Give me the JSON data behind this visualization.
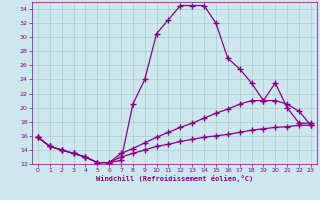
{
  "xlabel": "Windchill (Refroidissement éolien,°C)",
  "bg_color": "#cce8ec",
  "grid_color": "#aacccc",
  "line_color": "#880088",
  "xlim": [
    -0.5,
    23.5
  ],
  "ylim": [
    12,
    35
  ],
  "xticks": [
    0,
    1,
    2,
    3,
    4,
    5,
    6,
    7,
    8,
    9,
    10,
    11,
    12,
    13,
    14,
    15,
    16,
    17,
    18,
    19,
    20,
    21,
    22,
    23
  ],
  "yticks": [
    12,
    14,
    16,
    18,
    20,
    22,
    24,
    26,
    28,
    30,
    32,
    34
  ],
  "curve1_x": [
    0,
    1,
    2,
    3,
    4,
    5,
    6,
    7,
    8,
    9,
    10,
    11,
    12,
    13,
    14,
    15,
    16,
    17,
    18,
    19,
    20,
    21,
    22,
    23
  ],
  "curve1_y": [
    15.8,
    14.5,
    14.0,
    13.5,
    13.0,
    12.2,
    12.2,
    12.5,
    20.5,
    24.0,
    30.5,
    32.5,
    34.5,
    34.5,
    34.5,
    32.0,
    27.0,
    25.5,
    23.5,
    21.0,
    23.5,
    20.0,
    17.8,
    17.8
  ],
  "curve2_x": [
    0,
    1,
    2,
    3,
    4,
    5,
    6,
    7,
    8,
    9,
    10,
    11,
    12,
    13,
    14,
    15,
    16,
    17,
    18,
    19,
    20,
    21,
    22,
    23
  ],
  "curve2_y": [
    15.8,
    14.5,
    14.0,
    13.5,
    13.0,
    12.2,
    12.2,
    13.5,
    14.2,
    15.0,
    15.8,
    16.5,
    17.2,
    17.8,
    18.5,
    19.2,
    19.8,
    20.5,
    21.0,
    21.0,
    21.0,
    20.5,
    19.5,
    17.5
  ],
  "curve3_x": [
    0,
    1,
    2,
    3,
    4,
    5,
    6,
    7,
    8,
    9,
    10,
    11,
    12,
    13,
    14,
    15,
    16,
    17,
    18,
    19,
    20,
    21,
    22,
    23
  ],
  "curve3_y": [
    15.8,
    14.5,
    14.0,
    13.5,
    13.0,
    12.2,
    12.2,
    13.0,
    13.5,
    14.0,
    14.5,
    14.8,
    15.2,
    15.5,
    15.8,
    16.0,
    16.2,
    16.5,
    16.8,
    17.0,
    17.2,
    17.3,
    17.5,
    17.5
  ]
}
